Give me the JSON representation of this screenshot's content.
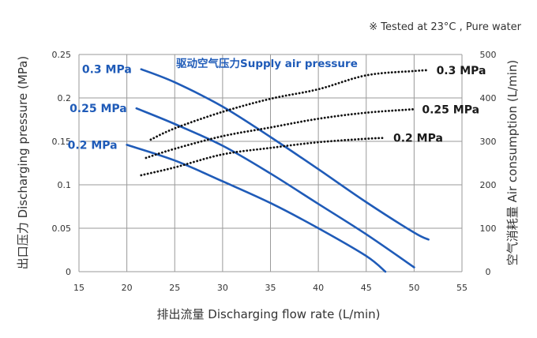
{
  "chart_data": {
    "type": "line",
    "note": "※  Tested at  23°C , Pure water",
    "supply_pressure_title": "驱动空气压力Supply air pressure",
    "xlabel": "排出流量 Discharging flow rate (L/min)",
    "ylabel_left": "出口压力 Discharging pressure (MPa)",
    "ylabel_right": "空气消耗量 Air consumption (L/min)",
    "xlim": [
      15,
      55
    ],
    "ylim_left": [
      0,
      0.25
    ],
    "ylim_right": [
      0,
      500
    ],
    "x_ticks": [
      "15",
      "20",
      "25",
      "30",
      "35",
      "40",
      "45",
      "50",
      "55"
    ],
    "y_ticks_left": [
      "0",
      "0.05",
      "0.1",
      "0.15",
      "0.2",
      "0.25"
    ],
    "y_ticks_right": [
      "0",
      "100",
      "200",
      "300",
      "400",
      "500"
    ],
    "grid": true,
    "colors": {
      "pressure": "#1f5bb8",
      "air": "#111111",
      "grid": "#9a9a9a"
    },
    "pressure_series": [
      {
        "name": "0.3 MPa",
        "axis": "left",
        "style": "solid",
        "x": [
          21.5,
          25,
          30,
          35,
          40,
          45,
          50,
          51.5
        ],
        "y": [
          0.233,
          0.218,
          0.19,
          0.155,
          0.118,
          0.08,
          0.045,
          0.037
        ]
      },
      {
        "name": "0.25 MPa",
        "axis": "left",
        "style": "solid",
        "x": [
          21,
          25,
          30,
          35,
          40,
          45,
          50
        ],
        "y": [
          0.188,
          0.17,
          0.145,
          0.113,
          0.078,
          0.043,
          0.005
        ]
      },
      {
        "name": "0.2 MPa",
        "axis": "left",
        "style": "solid",
        "x": [
          20,
          25,
          30,
          35,
          40,
          45,
          47
        ],
        "y": [
          0.146,
          0.128,
          0.104,
          0.079,
          0.05,
          0.018,
          0.0
        ]
      }
    ],
    "air_series": [
      {
        "name": "0.3 MPa",
        "axis": "right",
        "style": "dotted",
        "x": [
          22.5,
          25,
          30,
          35,
          40,
          45,
          50,
          51.5
        ],
        "y": [
          304,
          330,
          368,
          398,
          420,
          452,
          462,
          464
        ]
      },
      {
        "name": "0.25 MPa",
        "axis": "right",
        "style": "dotted",
        "x": [
          22,
          25,
          30,
          35,
          40,
          45,
          50
        ],
        "y": [
          262,
          283,
          312,
          332,
          352,
          366,
          374
        ]
      },
      {
        "name": "0.2 MPa",
        "axis": "right",
        "style": "dotted",
        "x": [
          21.5,
          25,
          30,
          35,
          40,
          45,
          47
        ],
        "y": [
          222,
          240,
          270,
          285,
          298,
          306,
          308
        ]
      }
    ]
  }
}
